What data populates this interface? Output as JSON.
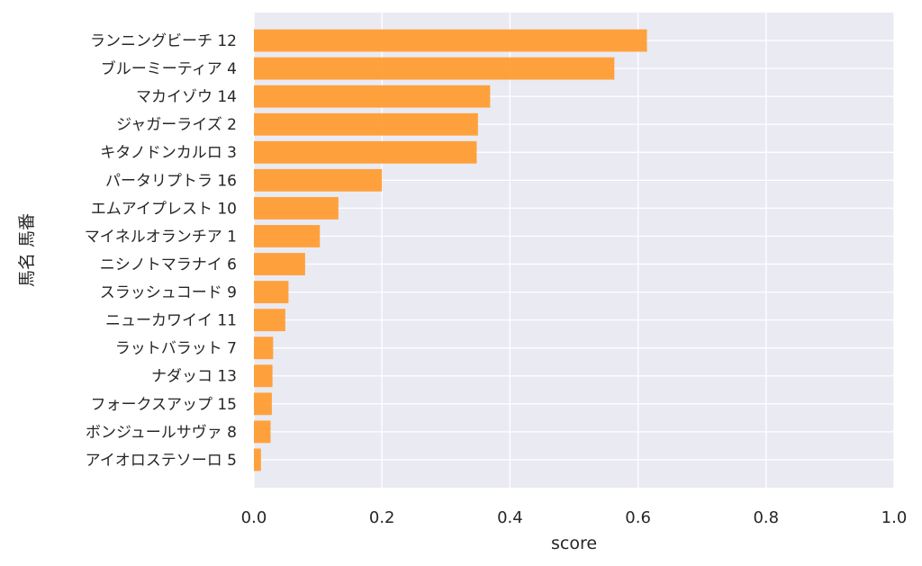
{
  "chart_data": {
    "type": "bar",
    "orientation": "horizontal",
    "xlabel": "score",
    "ylabel": "馬名 馬番",
    "xlim": [
      0.0,
      1.0
    ],
    "xticks": [
      "0.0",
      "0.2",
      "0.4",
      "0.6",
      "0.8",
      "1.0"
    ],
    "grid": true,
    "bar_color": "#ff9a2e",
    "background_color": "#eaeaf2",
    "categories": [
      "ランニングビーチ 12",
      "ブルーミーティア 4",
      "マカイゾウ 14",
      "ジャガーライズ 2",
      "キタノドンカルロ 3",
      "パータリプトラ 16",
      "エムアイプレスト 10",
      "マイネルオランチア 1",
      "ニシノトマラナイ 6",
      "スラッシュコード 9",
      "ニューカワイイ 11",
      "ラットバラット 7",
      "ナダッコ 13",
      "フォークスアップ 15",
      "ボンジュールサヴァ 8",
      "アイオロステソーロ 5"
    ],
    "values": [
      0.614,
      0.563,
      0.369,
      0.35,
      0.348,
      0.2,
      0.132,
      0.103,
      0.08,
      0.054,
      0.049,
      0.03,
      0.029,
      0.028,
      0.026,
      0.011
    ]
  }
}
